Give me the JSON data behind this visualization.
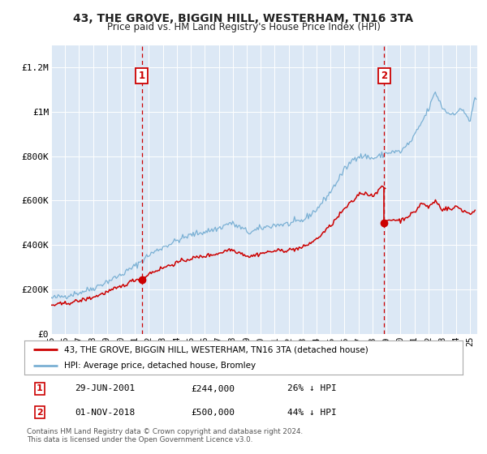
{
  "title": "43, THE GROVE, BIGGIN HILL, WESTERHAM, TN16 3TA",
  "subtitle": "Price paid vs. HM Land Registry's House Price Index (HPI)",
  "legend_label_red": "43, THE GROVE, BIGGIN HILL, WESTERHAM, TN16 3TA (detached house)",
  "legend_label_blue": "HPI: Average price, detached house, Bromley",
  "annotation1_date": "29-JUN-2001",
  "annotation1_price": "£244,000",
  "annotation1_pct": "26% ↓ HPI",
  "annotation2_date": "01-NOV-2018",
  "annotation2_price": "£500,000",
  "annotation2_pct": "44% ↓ HPI",
  "footer": "Contains HM Land Registry data © Crown copyright and database right 2024.\nThis data is licensed under the Open Government Licence v3.0.",
  "ylim": [
    0,
    1300000
  ],
  "yticks": [
    0,
    200000,
    400000,
    600000,
    800000,
    1000000,
    1200000
  ],
  "ytick_labels": [
    "£0",
    "£200K",
    "£400K",
    "£600K",
    "£800K",
    "£1M",
    "£1.2M"
  ],
  "bg_color": "#dce8f5",
  "line_color_red": "#cc0000",
  "line_color_blue": "#7ab0d4",
  "purchase1_x": 2001.49,
  "purchase1_y": 244000,
  "purchase2_x": 2018.84,
  "purchase2_y": 500000,
  "xmin": 1995.0,
  "xmax": 2025.5
}
